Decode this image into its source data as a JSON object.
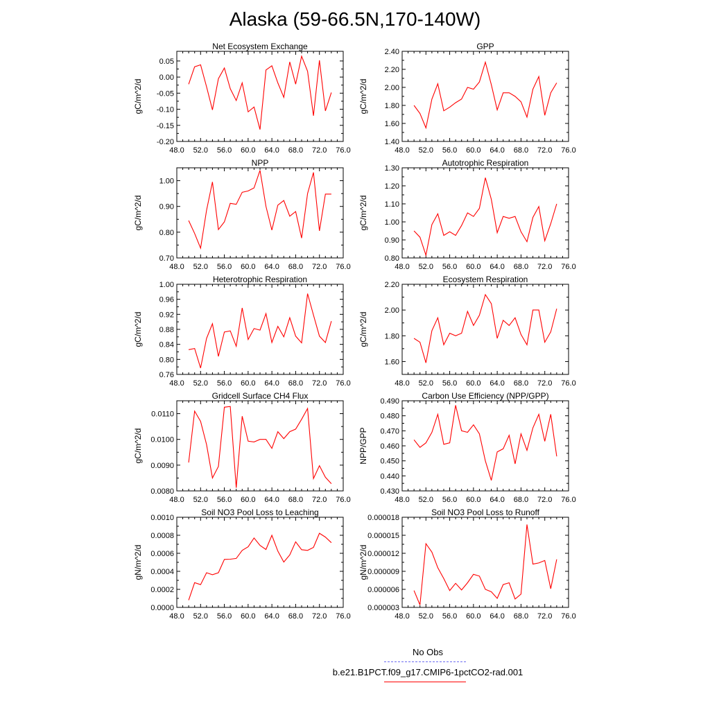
{
  "title": "Alaska (59-66.5N,170-140W)",
  "colors": {
    "model_line": "#ff0000",
    "obs_line": "#6a6af0",
    "frame": "#000000"
  },
  "legend": {
    "entries": [
      {
        "label": "No Obs",
        "style": "dashed",
        "color": "#6a6af0"
      },
      {
        "label": "b.e21.B1PCT.f09_g17.CMIP6-1pctCO2-rad.001",
        "style": "solid",
        "color": "#ff0000"
      }
    ]
  },
  "chart_data": [
    {
      "type": "line",
      "title": "Net Ecosystem Exchange",
      "ylabel": "gC/m^2/d",
      "xlim": [
        48,
        76
      ],
      "xticks": [
        "48.0",
        "52.0",
        "56.0",
        "60.0",
        "64.0",
        "68.0",
        "72.0",
        "76.0"
      ],
      "ylim": [
        -0.2,
        0.08
      ],
      "yticks": [
        "-0.20",
        "-0.15",
        "-0.10",
        "-0.05",
        "0.00",
        "0.05"
      ],
      "ytick_values": [
        -0.2,
        -0.15,
        -0.1,
        -0.05,
        0.0,
        0.05
      ],
      "x": [
        50,
        51,
        52,
        53,
        54,
        55,
        56,
        57,
        58,
        59,
        60,
        61,
        62,
        63,
        64,
        65,
        66,
        67,
        68,
        69,
        70,
        71,
        72,
        73,
        74
      ],
      "series": [
        {
          "values": [
            -0.022,
            0.032,
            0.038,
            -0.03,
            -0.102,
            -0.005,
            0.028,
            -0.036,
            -0.073,
            -0.018,
            -0.108,
            -0.093,
            -0.163,
            0.022,
            0.035,
            -0.018,
            -0.063,
            0.047,
            -0.022,
            0.065,
            0.018,
            -0.12,
            0.052,
            -0.105,
            -0.048
          ]
        }
      ]
    },
    {
      "type": "line",
      "title": "GPP",
      "ylabel": "gC/m^2/d",
      "xlim": [
        48,
        76
      ],
      "xticks": [
        "48.0",
        "52.0",
        "56.0",
        "60.0",
        "64.0",
        "68.0",
        "72.0",
        "76.0"
      ],
      "ylim": [
        1.4,
        2.4
      ],
      "yticks": [
        "1.40",
        "1.60",
        "1.80",
        "2.00",
        "2.20",
        "2.40"
      ],
      "ytick_values": [
        1.4,
        1.6,
        1.8,
        2.0,
        2.2,
        2.4
      ],
      "x": [
        50,
        51,
        52,
        53,
        54,
        55,
        56,
        57,
        58,
        59,
        60,
        61,
        62,
        63,
        64,
        65,
        66,
        67,
        68,
        69,
        70,
        71,
        72,
        73,
        74
      ],
      "series": [
        {
          "values": [
            1.8,
            1.71,
            1.55,
            1.87,
            2.04,
            1.74,
            1.78,
            1.83,
            1.87,
            2.0,
            1.98,
            2.06,
            2.28,
            2.03,
            1.75,
            1.94,
            1.94,
            1.9,
            1.84,
            1.67,
            1.98,
            2.12,
            1.69,
            1.94,
            2.05
          ]
        }
      ]
    },
    {
      "type": "line",
      "title": "NPP",
      "ylabel": "gC/m^2/d",
      "xlim": [
        48,
        76
      ],
      "xticks": [
        "48.0",
        "52.0",
        "56.0",
        "60.0",
        "64.0",
        "68.0",
        "72.0",
        "76.0"
      ],
      "ylim": [
        0.7,
        1.05
      ],
      "yticks": [
        "0.70",
        "0.80",
        "0.90",
        "1.00"
      ],
      "ytick_values": [
        0.7,
        0.8,
        0.9,
        1.0
      ],
      "x": [
        50,
        51,
        52,
        53,
        54,
        55,
        56,
        57,
        58,
        59,
        60,
        61,
        62,
        63,
        64,
        65,
        66,
        67,
        68,
        69,
        70,
        71,
        72,
        73,
        74
      ],
      "series": [
        {
          "values": [
            0.845,
            0.795,
            0.738,
            0.885,
            0.995,
            0.81,
            0.84,
            0.912,
            0.908,
            0.955,
            0.96,
            0.972,
            1.04,
            0.9,
            0.808,
            0.905,
            0.923,
            0.862,
            0.88,
            0.777,
            0.95,
            1.032,
            0.805,
            0.948,
            0.948
          ]
        }
      ]
    },
    {
      "type": "line",
      "title": "Autotrophic Respiration",
      "ylabel": "gC/m^2/d",
      "xlim": [
        48,
        76
      ],
      "xticks": [
        "48.0",
        "52.0",
        "56.0",
        "60.0",
        "64.0",
        "68.0",
        "72.0",
        "76.0"
      ],
      "ylim": [
        0.8,
        1.3
      ],
      "yticks": [
        "0.80",
        "0.90",
        "1.00",
        "1.10",
        "1.20",
        "1.30"
      ],
      "ytick_values": [
        0.8,
        0.9,
        1.0,
        1.1,
        1.2,
        1.3
      ],
      "x": [
        50,
        51,
        52,
        53,
        54,
        55,
        56,
        57,
        58,
        59,
        60,
        61,
        62,
        63,
        64,
        65,
        66,
        67,
        68,
        69,
        70,
        71,
        72,
        73,
        74
      ],
      "series": [
        {
          "values": [
            0.95,
            0.915,
            0.815,
            0.985,
            1.045,
            0.925,
            0.945,
            0.925,
            0.98,
            1.05,
            1.03,
            1.075,
            1.245,
            1.125,
            0.94,
            1.03,
            1.02,
            1.03,
            0.945,
            0.89,
            1.025,
            1.085,
            0.895,
            0.99,
            1.1
          ]
        }
      ]
    },
    {
      "type": "line",
      "title": "Heterotrophic Respiration",
      "ylabel": "gC/m^2/d",
      "xlim": [
        48,
        76
      ],
      "xticks": [
        "48.0",
        "52.0",
        "56.0",
        "60.0",
        "64.0",
        "68.0",
        "72.0",
        "76.0"
      ],
      "ylim": [
        0.76,
        1.0
      ],
      "yticks": [
        "0.76",
        "0.80",
        "0.84",
        "0.88",
        "0.92",
        "0.96",
        "1.00"
      ],
      "ytick_values": [
        0.76,
        0.8,
        0.84,
        0.88,
        0.92,
        0.96,
        1.0
      ],
      "x": [
        50,
        51,
        52,
        53,
        54,
        55,
        56,
        57,
        58,
        59,
        60,
        61,
        62,
        63,
        64,
        65,
        66,
        67,
        68,
        69,
        70,
        71,
        72,
        73,
        74
      ],
      "series": [
        {
          "values": [
            0.826,
            0.829,
            0.777,
            0.856,
            0.895,
            0.808,
            0.873,
            0.876,
            0.835,
            0.937,
            0.853,
            0.882,
            0.878,
            0.922,
            0.845,
            0.888,
            0.86,
            0.911,
            0.862,
            0.844,
            0.975,
            0.918,
            0.862,
            0.845,
            0.902
          ]
        }
      ]
    },
    {
      "type": "line",
      "title": "Ecosystem Respiration",
      "ylabel": "gC/m^2/d",
      "xlim": [
        48,
        76
      ],
      "xticks": [
        "48.0",
        "52.0",
        "56.0",
        "60.0",
        "64.0",
        "68.0",
        "72.0",
        "76.0"
      ],
      "ylim": [
        1.5,
        2.2
      ],
      "yticks": [
        "1.60",
        "1.80",
        "2.00",
        "2.20"
      ],
      "ytick_values": [
        1.6,
        1.8,
        2.0,
        2.2
      ],
      "x": [
        50,
        51,
        52,
        53,
        54,
        55,
        56,
        57,
        58,
        59,
        60,
        61,
        62,
        63,
        64,
        65,
        66,
        67,
        68,
        69,
        70,
        71,
        72,
        73,
        74
      ],
      "series": [
        {
          "values": [
            1.78,
            1.75,
            1.59,
            1.84,
            1.94,
            1.73,
            1.82,
            1.8,
            1.82,
            1.99,
            1.88,
            1.96,
            2.12,
            2.05,
            1.78,
            1.92,
            1.88,
            1.94,
            1.81,
            1.73,
            2.0,
            2.0,
            1.75,
            1.83,
            2.01
          ]
        }
      ]
    },
    {
      "type": "line",
      "title": "Gridcell Surface CH4 Flux",
      "ylabel": "gC/m^2/d",
      "xlim": [
        48,
        76
      ],
      "xticks": [
        "48.0",
        "52.0",
        "56.0",
        "60.0",
        "64.0",
        "68.0",
        "72.0",
        "76.0"
      ],
      "ylim": [
        0.008,
        0.0115
      ],
      "yticks": [
        "0.0080",
        "0.0090",
        "0.0100",
        "0.0110"
      ],
      "ytick_values": [
        0.008,
        0.009,
        0.01,
        0.011
      ],
      "x": [
        50,
        51,
        52,
        53,
        54,
        55,
        56,
        57,
        58,
        59,
        60,
        61,
        62,
        63,
        64,
        65,
        66,
        67,
        68,
        69,
        70,
        71,
        72,
        73,
        74
      ],
      "series": [
        {
          "values": [
            0.0091,
            0.0111,
            0.0107,
            0.0098,
            0.0085,
            0.00895,
            0.01125,
            0.01128,
            0.00812,
            0.0109,
            0.00993,
            0.0099,
            0.01,
            0.01,
            0.00965,
            0.0103,
            0.01003,
            0.0103,
            0.0104,
            0.01078,
            0.0112,
            0.00848,
            0.00898,
            0.00853,
            0.00828
          ]
        }
      ]
    },
    {
      "type": "line",
      "title": "Carbon Use Efficiency (NPP/GPP)",
      "ylabel": "NPP/GPP",
      "xlim": [
        48,
        76
      ],
      "xticks": [
        "48.0",
        "52.0",
        "56.0",
        "60.0",
        "64.0",
        "68.0",
        "72.0",
        "76.0"
      ],
      "ylim": [
        0.43,
        0.49
      ],
      "yticks": [
        "0.430",
        "0.440",
        "0.450",
        "0.460",
        "0.470",
        "0.480",
        "0.490"
      ],
      "ytick_values": [
        0.43,
        0.44,
        0.45,
        0.46,
        0.47,
        0.48,
        0.49
      ],
      "x": [
        50,
        51,
        52,
        53,
        54,
        55,
        56,
        57,
        58,
        59,
        60,
        61,
        62,
        63,
        64,
        65,
        66,
        67,
        68,
        69,
        70,
        71,
        72,
        73,
        74
      ],
      "series": [
        {
          "values": [
            0.464,
            0.459,
            0.462,
            0.469,
            0.481,
            0.461,
            0.462,
            0.487,
            0.47,
            0.469,
            0.474,
            0.468,
            0.45,
            0.437,
            0.456,
            0.458,
            0.467,
            0.448,
            0.468,
            0.457,
            0.472,
            0.481,
            0.463,
            0.481,
            0.453
          ]
        }
      ]
    },
    {
      "type": "line",
      "title": "Soil NO3 Pool Loss to Leaching",
      "ylabel": "gN/m^2/d",
      "xlim": [
        48,
        76
      ],
      "xticks": [
        "48.0",
        "52.0",
        "56.0",
        "60.0",
        "64.0",
        "68.0",
        "72.0",
        "76.0"
      ],
      "ylim": [
        0.0,
        0.001
      ],
      "yticks": [
        "0.0000",
        "0.0002",
        "0.0004",
        "0.0006",
        "0.0008",
        "0.0010"
      ],
      "ytick_values": [
        0.0,
        0.0002,
        0.0004,
        0.0006,
        0.0008,
        0.001
      ],
      "x": [
        50,
        51,
        52,
        53,
        54,
        55,
        56,
        57,
        58,
        59,
        60,
        61,
        62,
        63,
        64,
        65,
        66,
        67,
        68,
        69,
        70,
        71,
        72,
        73,
        74
      ],
      "series": [
        {
          "values": [
            8e-05,
            0.000275,
            0.000252,
            0.000385,
            0.000362,
            0.000385,
            0.000532,
            0.000535,
            0.000543,
            0.000632,
            0.000672,
            0.00077,
            0.000688,
            0.000642,
            0.0008,
            0.000625,
            0.000503,
            0.000582,
            0.000728,
            0.00064,
            0.000632,
            0.000665,
            0.000822,
            0.00078,
            0.000718
          ]
        }
      ]
    },
    {
      "type": "line",
      "title": "Soil NO3 Pool Loss to Runoff",
      "ylabel": "gN/m^2/d",
      "xlim": [
        48,
        76
      ],
      "xticks": [
        "48.0",
        "52.0",
        "56.0",
        "60.0",
        "64.0",
        "68.0",
        "72.0",
        "76.0"
      ],
      "ylim": [
        3e-06,
        1.8e-05
      ],
      "yticks": [
        "0.000003",
        "0.000006",
        "0.000009",
        "0.000012",
        "0.000015",
        "0.000018"
      ],
      "ytick_values": [
        3e-06,
        6e-06,
        9e-06,
        1.2e-05,
        1.5e-05,
        1.8e-05
      ],
      "x": [
        50,
        51,
        52,
        53,
        54,
        55,
        56,
        57,
        58,
        59,
        60,
        61,
        62,
        63,
        64,
        65,
        66,
        67,
        68,
        69,
        70,
        71,
        72,
        73,
        74
      ],
      "series": [
        {
          "values": [
            5.8e-06,
            3.4e-06,
            1.36e-05,
            1.22e-05,
            9.6e-06,
            7.8e-06,
            5.8e-06,
            7e-06,
            5.9e-06,
            7.1e-06,
            8.5e-06,
            8.2e-06,
            6e-06,
            5.6e-06,
            4.5e-06,
            6.8e-06,
            7.1e-06,
            4.4e-06,
            5.2e-06,
            1.68e-05,
            1.02e-05,
            1.04e-05,
            1.08e-05,
            6.1e-06,
            1.1e-05
          ]
        }
      ]
    }
  ]
}
